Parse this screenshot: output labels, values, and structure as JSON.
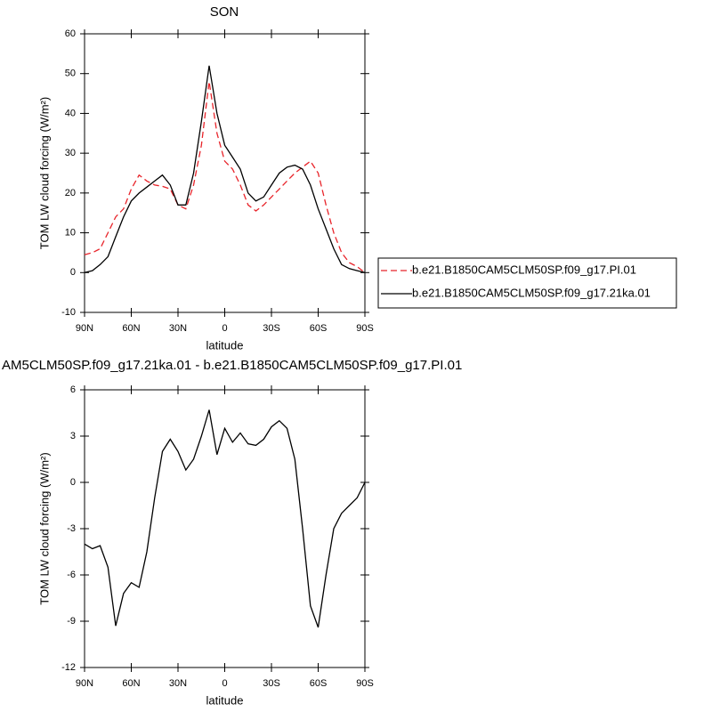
{
  "chart_data": [
    {
      "type": "line",
      "title": "SON",
      "x_label": "latitude",
      "y_label": "TOM LW cloud forcing (W/m²)",
      "x": [
        90,
        85,
        80,
        75,
        70,
        65,
        60,
        55,
        50,
        45,
        40,
        35,
        30,
        25,
        20,
        15,
        10,
        5,
        0,
        -5,
        -10,
        -15,
        -20,
        -25,
        -30,
        -35,
        -40,
        -45,
        -50,
        -55,
        -60,
        -65,
        -70,
        -75,
        -80,
        -85,
        -90
      ],
      "series": [
        {
          "name": "b.e21.B1850CAM5CLM50SP.f09_g17.PI.01",
          "color": "#e8242a",
          "dash": true,
          "values": [
            4.5,
            5,
            6,
            10,
            14,
            16,
            21,
            24.5,
            23,
            22,
            21.7,
            21,
            17,
            16,
            22,
            32,
            48,
            35,
            28,
            26,
            22,
            17,
            15.5,
            17,
            19,
            21,
            23,
            25,
            26.5,
            28,
            25,
            17,
            10,
            5,
            2.5,
            1.5,
            0
          ]
        },
        {
          "name": "b.e21.B1850CAM5CLM50SP.f09_g17.21ka.01",
          "color": "#000000",
          "dash": false,
          "values": [
            0,
            0.5,
            2,
            4,
            9,
            14,
            18,
            20,
            21.5,
            23,
            24.5,
            22,
            17,
            17,
            25,
            38,
            52,
            40,
            32,
            29,
            26,
            20,
            18,
            19,
            22,
            25,
            26.5,
            27,
            26,
            22,
            16,
            11,
            6,
            2,
            1,
            0.5,
            0
          ]
        }
      ],
      "xlim": [
        90,
        -90
      ],
      "xticks": [
        {
          "value": 90,
          "label": "90N"
        },
        {
          "value": 60,
          "label": "60N"
        },
        {
          "value": 30,
          "label": "30N"
        },
        0,
        {
          "value": -30,
          "label": "30S"
        },
        {
          "value": -60,
          "label": "60S"
        },
        {
          "value": -90,
          "label": "90S"
        }
      ],
      "ylim": [
        -10,
        60
      ],
      "yticks": [
        -10,
        0,
        10,
        20,
        30,
        40,
        50,
        60
      ],
      "legend": "right"
    },
    {
      "type": "line",
      "title": "AM5CLM50SP.f09_g17.21ka.01 - b.e21.B1850CAM5CLM50SP.f09_g17.PI.01",
      "x_label": "latitude",
      "y_label": "TOM LW cloud forcing (W/m²)",
      "x": [
        90,
        85,
        80,
        75,
        70,
        65,
        60,
        55,
        50,
        45,
        40,
        35,
        30,
        25,
        20,
        15,
        10,
        5,
        0,
        -5,
        -10,
        -15,
        -20,
        -25,
        -30,
        -35,
        -40,
        -45,
        -50,
        -55,
        -60,
        -65,
        -70,
        -75,
        -80,
        -85,
        -90
      ],
      "series": [
        {
          "color": "#000000",
          "dash": false,
          "values": [
            -4,
            -4.3,
            -4.1,
            -5.5,
            -9.3,
            -7.2,
            -6.5,
            -6.8,
            -4.5,
            -1,
            2,
            2.8,
            2,
            0.8,
            1.5,
            3,
            4.7,
            1.8,
            3.5,
            2.6,
            3.2,
            2.5,
            2.4,
            2.8,
            3.6,
            4,
            3.5,
            1.5,
            -3,
            -8,
            -9.4,
            -6,
            -3,
            -2,
            -1.5,
            -1,
            0
          ]
        }
      ],
      "xlim": [
        90,
        -90
      ],
      "xticks": [
        {
          "value": 90,
          "label": "90N"
        },
        {
          "value": 60,
          "label": "60N"
        },
        {
          "value": 30,
          "label": "30N"
        },
        0,
        {
          "value": -30,
          "label": "30S"
        },
        {
          "value": -60,
          "label": "60S"
        },
        {
          "value": -90,
          "label": "90S"
        }
      ],
      "ylim": [
        -12,
        6
      ],
      "yticks": [
        -12,
        -9,
        -6,
        -3,
        0,
        3,
        6
      ]
    }
  ]
}
